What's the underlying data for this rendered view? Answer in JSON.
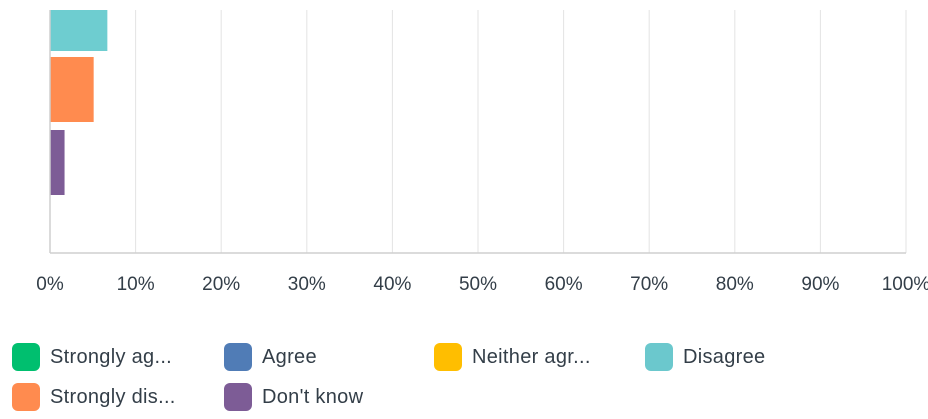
{
  "chart_data": {
    "type": "bar",
    "orientation": "horizontal",
    "stacked": false,
    "x_ticks": [
      "0%",
      "10%",
      "20%",
      "30%",
      "40%",
      "50%",
      "60%",
      "70%",
      "80%",
      "90%",
      "100%"
    ],
    "xlim": [
      0,
      100
    ],
    "grid": true,
    "legend_position": "bottom",
    "visible_category_group": {
      "series": [
        {
          "name": "Disagree",
          "color": "#6ecdd0",
          "value": 6.7
        },
        {
          "name": "Strongly disagree",
          "color": "#ff8b4f",
          "value": 5.1
        },
        {
          "name": "Don't know",
          "color": "#7d5c96",
          "value": 1.7
        }
      ]
    }
  },
  "legend": {
    "items": [
      {
        "label": "Strongly ag...",
        "color": "#00bf6f"
      },
      {
        "label": "Agree",
        "color": "#507cb6"
      },
      {
        "label": "Neither agr...",
        "color": "#ffbe00"
      },
      {
        "label": "Disagree",
        "color": "#6bc8cd"
      },
      {
        "label": "Strongly dis...",
        "color": "#ff8b4f"
      },
      {
        "label": "Don't know",
        "color": "#7d5c96"
      }
    ]
  }
}
